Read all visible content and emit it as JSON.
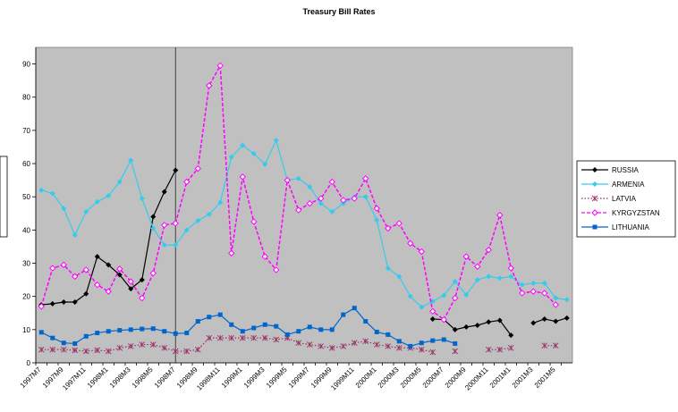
{
  "chart_data": {
    "type": "line",
    "title": "Treasury Bill Rates",
    "categories": [
      "1997M7",
      null,
      "1997M9",
      null,
      "1997M11",
      null,
      "1998M1",
      null,
      "1998M3",
      null,
      "1998M5",
      null,
      "1998M7",
      null,
      "1998M9",
      null,
      "1998M11",
      null,
      "1999M1",
      null,
      "1999M3",
      null,
      "1999M5",
      null,
      "1999M7",
      null,
      "1999M9",
      null,
      "1999M11",
      null,
      "2000M1",
      null,
      "2000M3",
      null,
      "2000M5",
      null,
      "2000M7",
      null,
      "2000M9",
      null,
      "2000M11",
      null,
      "2001M1",
      null,
      "2001M3",
      null,
      "2001M5",
      null
    ],
    "ylim": [
      0,
      95
    ],
    "yticks": [
      0,
      10,
      20,
      30,
      40,
      50,
      60,
      70,
      80,
      90
    ],
    "series": [
      {
        "name": "RUSSIA",
        "color": "#000000",
        "marker": "diamond",
        "dash": "solid",
        "values": [
          17.5,
          17.8,
          18.3,
          18.3,
          20.8,
          32,
          29.5,
          26.5,
          22.3,
          25,
          44,
          51.5,
          58,
          null,
          null,
          null,
          null,
          null,
          null,
          null,
          null,
          null,
          null,
          null,
          null,
          null,
          null,
          null,
          null,
          null,
          null,
          null,
          null,
          null,
          null,
          13.2,
          13,
          10,
          10.8,
          11.3,
          12.3,
          12.8,
          8.3,
          null,
          12,
          13.2,
          12.5,
          13.5
        ]
      },
      {
        "name": "ARMENIA",
        "color": "#33ccee",
        "marker": "diamond",
        "dash": "solid",
        "values": [
          52,
          51,
          46.5,
          38.5,
          45.5,
          48.5,
          50.3,
          54.5,
          61,
          49.5,
          40.5,
          35.5,
          35.5,
          40,
          42.8,
          44.7,
          48.3,
          62,
          65.5,
          63,
          59.8,
          67,
          55,
          55.5,
          53,
          48,
          45.5,
          48,
          50,
          50,
          43,
          28.5,
          26,
          20,
          16.8,
          18.5,
          20.3,
          24.5,
          20.5,
          25,
          26,
          25.5,
          26,
          23.5,
          24,
          24,
          19.5,
          19
        ]
      },
      {
        "name": "LATVIA",
        "color": "#993366",
        "marker": "star",
        "dash": "dotted",
        "values": [
          4,
          4,
          4,
          3.8,
          3.5,
          3.8,
          3.5,
          4.5,
          5,
          5.5,
          5.5,
          4.5,
          3.5,
          3.5,
          4,
          7.5,
          7.5,
          7.5,
          7.5,
          7.5,
          7.5,
          7,
          7.5,
          6,
          5.5,
          5,
          4.5,
          5,
          6,
          6.5,
          5.5,
          5,
          4.5,
          4.5,
          4,
          3.2,
          null,
          3.5,
          null,
          null,
          4,
          4,
          4.5,
          null,
          null,
          5.2,
          5.2,
          null
        ]
      },
      {
        "name": "KYRGYZSTAN",
        "color": "#ff00ff",
        "marker": "diamond-open",
        "dash": "dashed",
        "values": [
          17,
          28.5,
          29.5,
          26,
          28,
          23.5,
          21.5,
          28.3,
          24.5,
          19.5,
          27,
          41.5,
          42,
          54.5,
          58.5,
          83.5,
          89.5,
          33,
          56,
          42.5,
          32,
          28,
          55,
          46,
          48,
          49.5,
          54.5,
          49,
          49.5,
          55.5,
          46.5,
          40.5,
          42,
          36,
          33.5,
          15.5,
          13,
          19.5,
          32,
          29,
          34,
          44.5,
          28.5,
          21,
          21.5,
          21,
          17.5,
          null
        ]
      },
      {
        "name": "LITHUANIA",
        "color": "#0066cc",
        "marker": "square",
        "dash": "solid",
        "values": [
          9.2,
          7.5,
          6,
          5.8,
          8,
          9,
          9.5,
          9.8,
          10,
          10.2,
          10.3,
          9.5,
          8.8,
          9,
          12.5,
          13.8,
          14.5,
          11.5,
          9.5,
          10.5,
          11.5,
          11,
          8.5,
          9.5,
          10.8,
          10,
          10,
          14.5,
          16.5,
          12.5,
          9.3,
          8.5,
          6.5,
          5,
          6,
          6.7,
          7,
          5.8,
          null,
          null,
          null,
          null,
          null,
          null,
          null,
          null,
          null,
          null
        ]
      }
    ]
  }
}
